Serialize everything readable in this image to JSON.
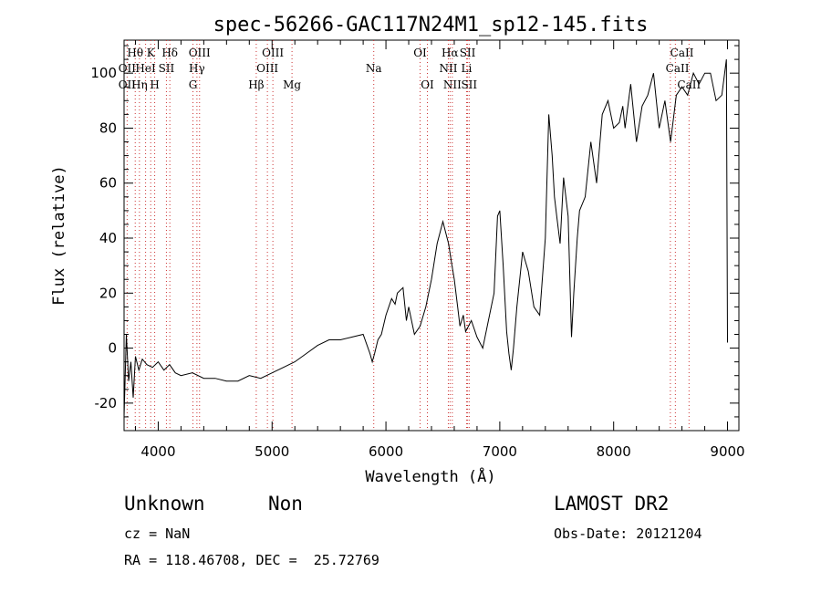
{
  "chart_data": {
    "type": "line",
    "title": "spec-56266-GAC117N24M1_sp12-145.fits",
    "xlabel": "Wavelength (Å)",
    "ylabel": "Flux (relative)",
    "xlim": [
      3700,
      9100
    ],
    "ylim": [
      -30,
      112
    ],
    "x_ticks": [
      4000,
      5000,
      6000,
      7000,
      8000,
      9000
    ],
    "y_ticks": [
      -20,
      0,
      20,
      40,
      60,
      80,
      100
    ],
    "grid": false,
    "series": [
      {
        "x": [
          3700,
          3720,
          3740,
          3760,
          3780,
          3800,
          3830,
          3860,
          3900,
          3950,
          4000,
          4050,
          4100,
          4150,
          4200,
          4300,
          4400,
          4500,
          4600,
          4700,
          4800,
          4900,
          5000,
          5100,
          5200,
          5300,
          5400,
          5500,
          5600,
          5700,
          5800,
          5860,
          5880,
          5900,
          5930,
          5960,
          6000,
          6050,
          6080,
          6100,
          6150,
          6180,
          6200,
          6250,
          6300,
          6350,
          6400,
          6450,
          6500,
          6550,
          6580,
          6600,
          6630,
          6650,
          6680,
          6700,
          6750,
          6800,
          6850,
          6900,
          6950,
          6980,
          7000,
          7030,
          7060,
          7080,
          7100,
          7120,
          7150,
          7200,
          7250,
          7300,
          7350,
          7400,
          7430,
          7460,
          7480,
          7500,
          7530,
          7560,
          7600,
          7630,
          7650,
          7680,
          7700,
          7750,
          7800,
          7850,
          7900,
          7950,
          8000,
          8050,
          8080,
          8100,
          8150,
          8200,
          8250,
          8300,
          8350,
          8400,
          8450,
          8500,
          8550,
          8600,
          8650,
          8700,
          8750,
          8800,
          8850,
          8900,
          8950,
          8990,
          9000
        ],
        "y": [
          -25,
          5,
          -12,
          -5,
          -18,
          -3,
          -8,
          -4,
          -6,
          -7,
          -5,
          -8,
          -6,
          -9,
          -10,
          -9,
          -11,
          -11,
          -12,
          -12,
          -10,
          -11,
          -9,
          -7,
          -5,
          -2,
          1,
          3,
          3,
          4,
          5,
          -2,
          -5,
          -2,
          3,
          5,
          12,
          18,
          16,
          20,
          22,
          10,
          15,
          5,
          8,
          15,
          25,
          38,
          46,
          38,
          30,
          25,
          15,
          8,
          12,
          6,
          10,
          4,
          0,
          10,
          20,
          48,
          50,
          30,
          6,
          -2,
          -8,
          0,
          15,
          35,
          28,
          15,
          12,
          40,
          85,
          70,
          55,
          48,
          38,
          62,
          48,
          4,
          20,
          40,
          50,
          55,
          75,
          60,
          85,
          90,
          80,
          82,
          88,
          80,
          96,
          75,
          88,
          92,
          100,
          80,
          90,
          75,
          92,
          95,
          92,
          100,
          96,
          100,
          100,
          90,
          92,
          105,
          2
        ]
      }
    ],
    "annotations": [
      {
        "label": "Hθ",
        "x": 3798,
        "row": 0
      },
      {
        "label": "K",
        "x": 3934,
        "row": 0
      },
      {
        "label": "Hδ",
        "x": 4102,
        "row": 0
      },
      {
        "label": "OIII",
        "x": 4363,
        "row": 0
      },
      {
        "label": "OIII",
        "x": 5007,
        "row": 0
      },
      {
        "label": "OI",
        "x": 6300,
        "row": 0
      },
      {
        "label": "Hα",
        "x": 6563,
        "row": 0
      },
      {
        "label": "SII",
        "x": 6717,
        "row": 0
      },
      {
        "label": "CaII",
        "x": 8600,
        "row": 0
      },
      {
        "label": "OII",
        "x": 3727,
        "row": 1
      },
      {
        "label": "HeI",
        "x": 3889,
        "row": 1
      },
      {
        "label": "SII",
        "x": 4072,
        "row": 1
      },
      {
        "label": "Hγ",
        "x": 4340,
        "row": 1
      },
      {
        "label": "OIII",
        "x": 4959,
        "row": 1
      },
      {
        "label": "Na",
        "x": 5893,
        "row": 1
      },
      {
        "label": "NII",
        "x": 6548,
        "row": 1
      },
      {
        "label": "Li",
        "x": 6708,
        "row": 1
      },
      {
        "label": "CaII",
        "x": 8560,
        "row": 1
      },
      {
        "label": "OII",
        "x": 3727,
        "row": 2
      },
      {
        "label": "Hη",
        "x": 3835,
        "row": 2
      },
      {
        "label": "H",
        "x": 3969,
        "row": 2
      },
      {
        "label": "G",
        "x": 4305,
        "row": 2
      },
      {
        "label": "Hβ",
        "x": 4861,
        "row": 2
      },
      {
        "label": "Mg",
        "x": 5175,
        "row": 2
      },
      {
        "label": "OI",
        "x": 6364,
        "row": 2
      },
      {
        "label": "NII",
        "x": 6583,
        "row": 2
      },
      {
        "label": "SII",
        "x": 6731,
        "row": 2
      },
      {
        "label": "CaII",
        "x": 8662,
        "row": 2
      }
    ],
    "line_markers": [
      3727,
      3798,
      3835,
      3889,
      3934,
      3969,
      4072,
      4102,
      4305,
      4340,
      4363,
      4861,
      4959,
      5007,
      5175,
      5893,
      6300,
      6364,
      6548,
      6563,
      6583,
      6708,
      6717,
      6731,
      8498,
      8542,
      8662
    ]
  },
  "info": {
    "class_label": "Unknown",
    "subclass_label": "Non",
    "survey": "LAMOST DR2",
    "cz": "cz = NaN",
    "obs_date": "Obs-Date: 20121204",
    "coords": "RA = 118.46708, DEC =  25.72769"
  },
  "colors": {
    "axis": "#000000",
    "marker": "#cc3333",
    "line": "#000000"
  }
}
